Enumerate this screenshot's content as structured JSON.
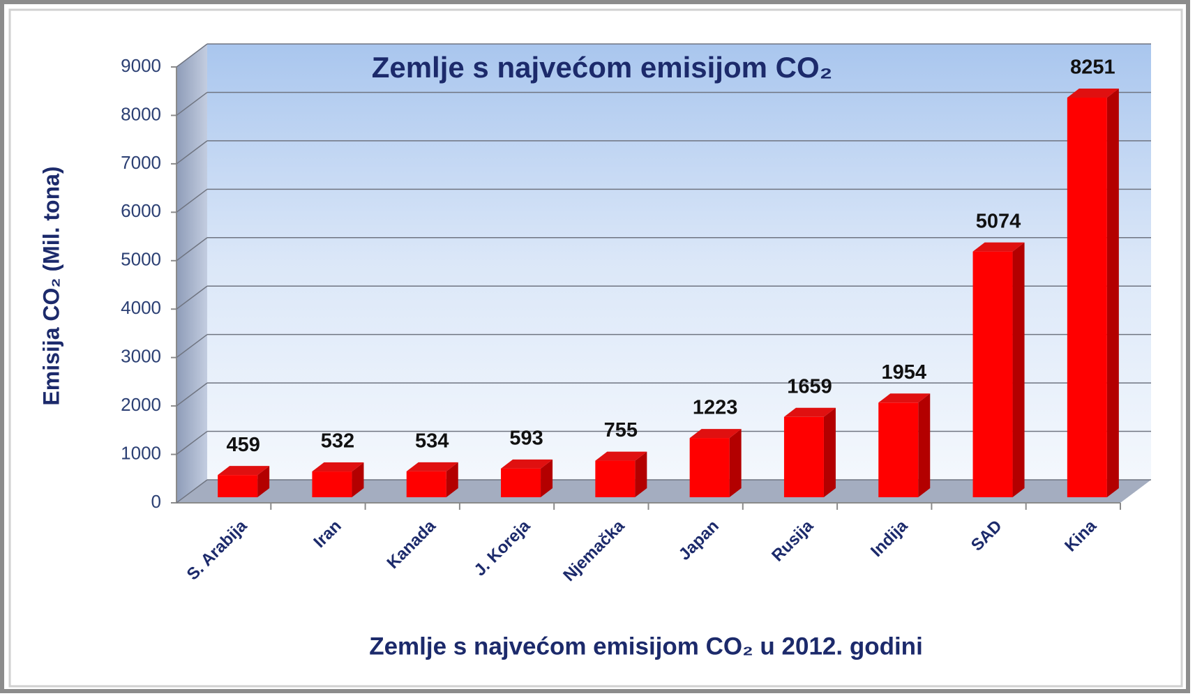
{
  "chart_data": {
    "type": "bar",
    "title": "Zemlje s najvećom emisijom CO₂",
    "y_label": "Emisija CO₂ (Mil. tona)",
    "x_label": "Zemlje s najvećom emisijom CO₂ u 2012. godini",
    "categories": [
      "S. Arabija",
      "Iran",
      "Kanada",
      "J. Koreja",
      "Njemačka",
      "Japan",
      "Rusija",
      "Indija",
      "SAD",
      "Kina"
    ],
    "values": [
      459,
      532,
      534,
      593,
      755,
      1223,
      1659,
      1954,
      5074,
      8251
    ],
    "color": "#ff0000",
    "ylim": [
      0,
      9000
    ],
    "yticks": [
      0,
      1000,
      2000,
      3000,
      4000,
      5000,
      6000,
      7000,
      8000,
      9000
    ],
    "grid": true
  }
}
